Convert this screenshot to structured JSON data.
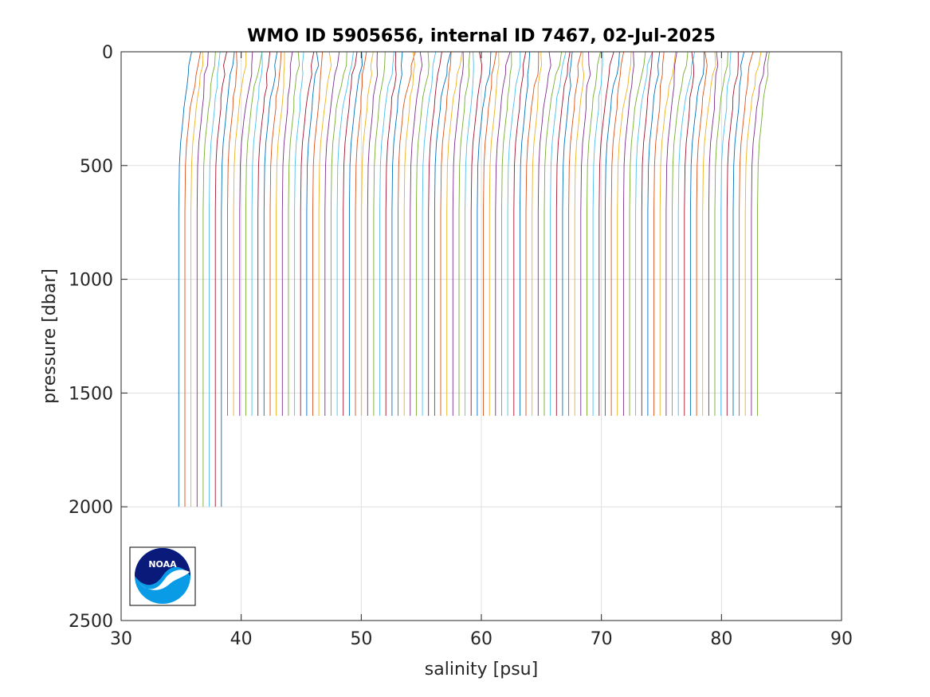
{
  "chart_data": {
    "type": "line",
    "title": "WMO ID 5905656, internal ID 7467, 02-Jul-2025",
    "xlabel": "salinity [psu]",
    "ylabel": "pressure [dbar]",
    "xlim": [
      30,
      90
    ],
    "ylim": [
      0,
      2500
    ],
    "y_reversed": true,
    "grid": true,
    "xticks": [
      "30",
      "40",
      "50",
      "60",
      "70",
      "80",
      "90"
    ],
    "yticks": [
      "0",
      "500",
      "1000",
      "1500",
      "2000",
      "2500"
    ],
    "profile_count": 96,
    "profile_offset_step": 0.5,
    "first_profile_salinity_at_depth": 34.8,
    "last_profile_salinity_at_depth": 83.0,
    "deep_profiles_max_pressure": 2000,
    "shallow_profiles_max_pressure": 1600,
    "deep_profile_count": 8,
    "representative_profile": {
      "pressure": [
        0,
        60,
        100,
        150,
        200,
        250,
        300,
        350,
        400,
        500,
        700,
        1000,
        1500,
        2000
      ],
      "salinity": [
        35.4,
        35.3,
        35.2,
        35.05,
        34.9,
        34.8,
        34.7,
        34.6,
        34.5,
        34.4,
        34.35,
        34.35,
        34.35,
        34.35
      ]
    },
    "series_colors": [
      "#0072bd",
      "#d95319",
      "#edb120",
      "#7e2f8e",
      "#77ac30",
      "#4dbeee",
      "#a2142f"
    ]
  },
  "logo": {
    "name": "NOAA",
    "text": "NOAA",
    "colors": {
      "navy": "#0a1a7a",
      "light_blue": "#0a9be6"
    }
  }
}
